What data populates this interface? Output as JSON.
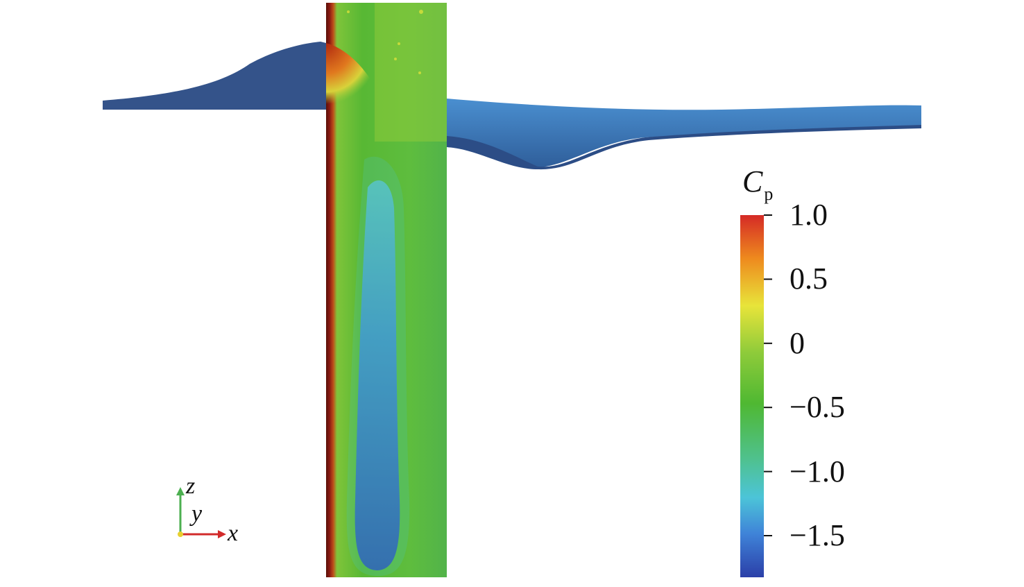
{
  "colorbar": {
    "title": "C",
    "title_subscript": "p",
    "ticks": [
      {
        "value": 1.0,
        "label": "1.0"
      },
      {
        "value": 0.5,
        "label": "0.5"
      },
      {
        "value": 0.0,
        "label": "0"
      },
      {
        "value": -0.5,
        "label": "−0.5"
      },
      {
        "value": -1.0,
        "label": "−1.0"
      },
      {
        "value": -1.5,
        "label": "−1.5"
      }
    ],
    "range": [
      -1.8,
      1.0
    ],
    "colors": [
      "#2b3fa8",
      "#3f83d8",
      "#4cc4d8",
      "#4fc18c",
      "#4fb832",
      "#8ecb3a",
      "#e8e43a",
      "#ee8a1e",
      "#d52a26"
    ]
  },
  "axes": {
    "z_label": "z",
    "y_label": "y",
    "x_label": "x",
    "z_color": "#4caf50",
    "x_color": "#d22b2b",
    "origin_color": "#e8d030"
  },
  "scene": {
    "water_surface_color": "#2f4f86",
    "water_surface_light": "#3f7ec4",
    "cylinder_base_color": "#5fbf3a",
    "stagnation_color": "#8b1a12",
    "suction_color": "#2c4fb0"
  }
}
